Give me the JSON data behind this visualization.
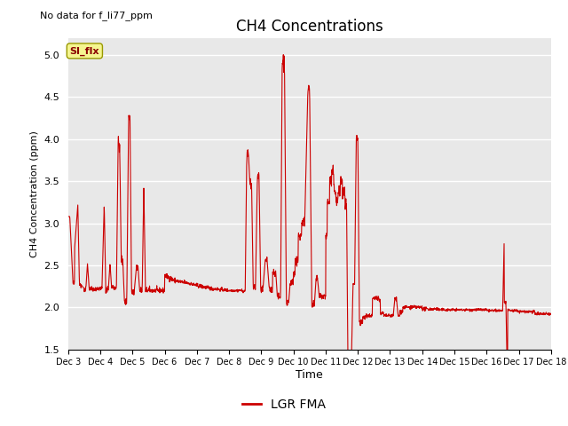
{
  "title": "CH4 Concentrations",
  "xlabel": "Time",
  "ylabel": "CH4 Concentration (ppm)",
  "top_left_note": "No data for f_li77_ppm",
  "legend_label": "LGR FMA",
  "annotation_box": "SI_flx",
  "ylim": [
    1.5,
    5.2
  ],
  "yticks": [
    1.5,
    2.0,
    2.5,
    3.0,
    3.5,
    4.0,
    4.5,
    5.0
  ],
  "line_color": "#cc0000",
  "plot_bg_color": "#e8e8e8",
  "fig_bg_color": "#ffffff",
  "grid_color": "#ffffff",
  "x_dates": [
    "Dec 3",
    "Dec 4",
    "Dec 5",
    "Dec 6",
    "Dec 7",
    "Dec 8",
    "Dec 9",
    "Dec 10",
    "Dec 11",
    "Dec 12",
    "Dec 13",
    "Dec 14",
    "Dec 15",
    "Dec 16",
    "Dec 17",
    "Dec 18"
  ],
  "x_numeric": [
    3,
    4,
    5,
    6,
    7,
    8,
    9,
    10,
    11,
    12,
    13,
    14,
    15,
    16,
    17,
    18
  ]
}
